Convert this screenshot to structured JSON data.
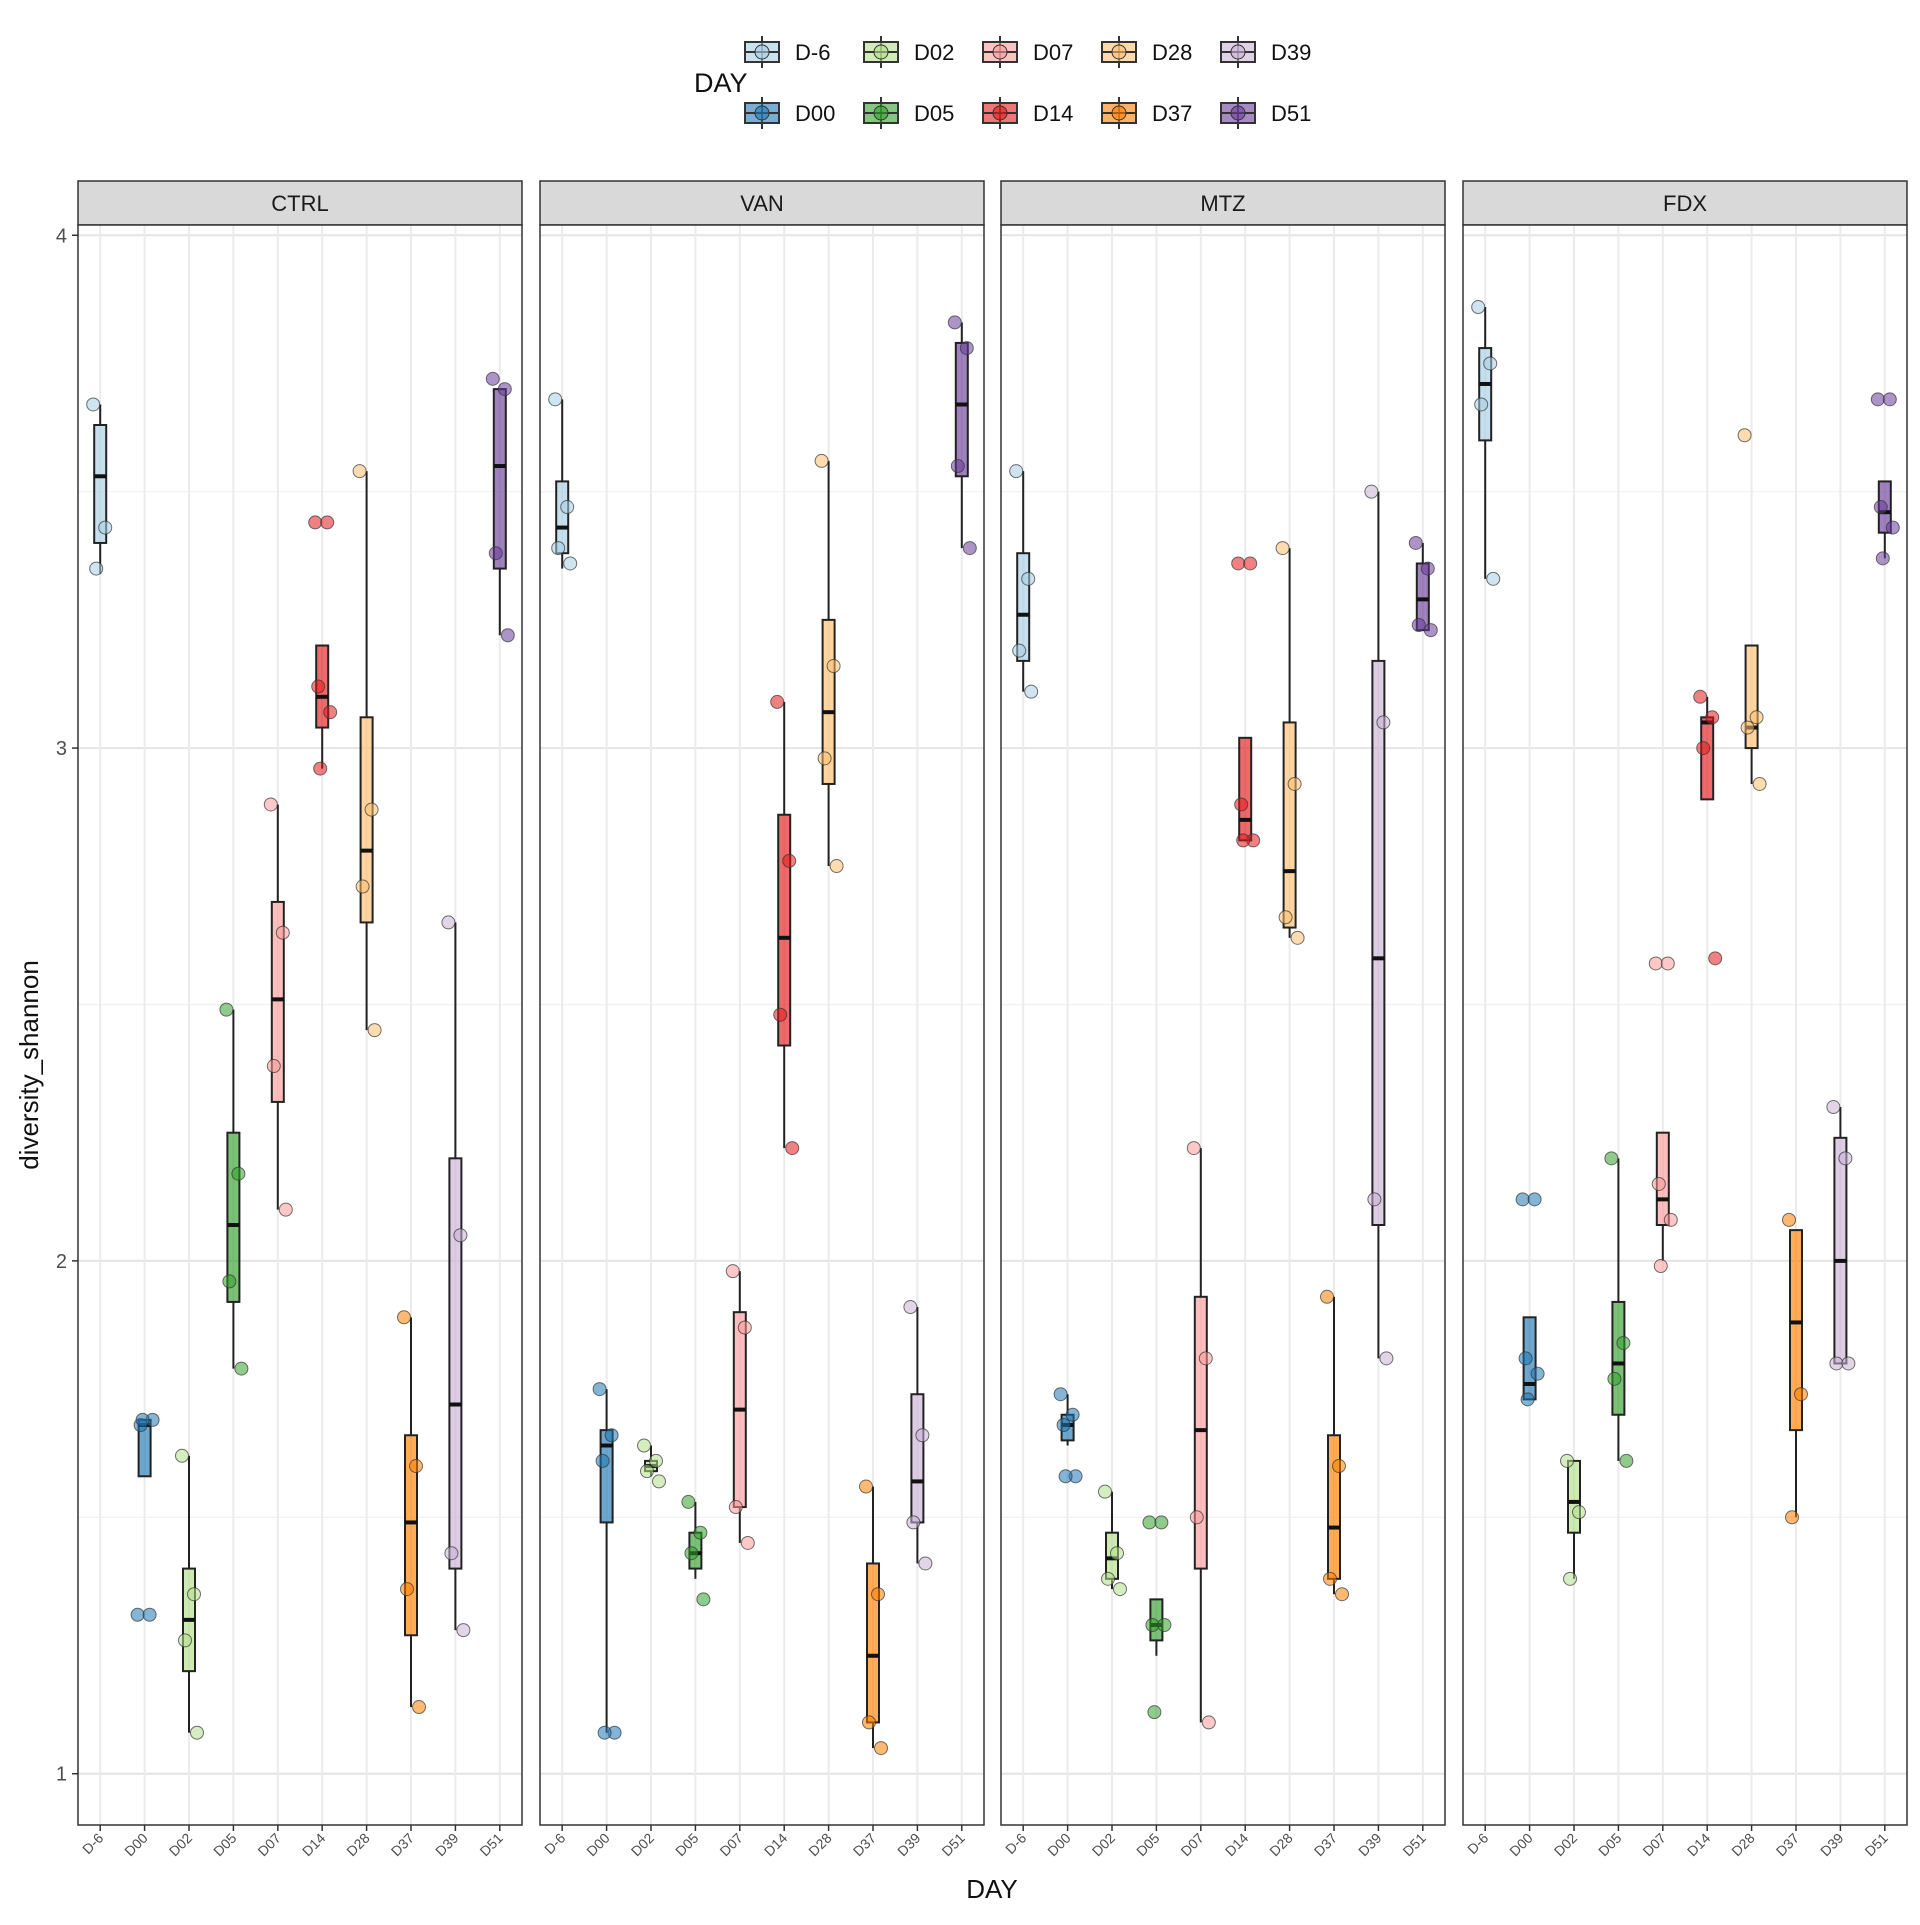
{
  "chart_data": {
    "type": "box",
    "xlabel": "DAY",
    "ylabel": "diversity_shannon",
    "ylim": [
      0.9,
      4.02
    ],
    "yticks": [
      1,
      2,
      3,
      4
    ],
    "grid": true,
    "legend_title": "DAY",
    "legend_position": "top",
    "categories": [
      "D-6",
      "D00",
      "D02",
      "D05",
      "D07",
      "D14",
      "D28",
      "D37",
      "D39",
      "D51"
    ],
    "legend_order": [
      "D-6",
      "D02",
      "D07",
      "D28",
      "D39",
      "D00",
      "D05",
      "D14",
      "D37",
      "D51"
    ],
    "colors": {
      "D-6": "#a6cee3",
      "D00": "#1f78b4",
      "D02": "#b2df8a",
      "D05": "#33a02c",
      "D07": "#fb9a99",
      "D14": "#e31a1c",
      "D28": "#fdbf6f",
      "D37": "#ff7f00",
      "D39": "#cab2d6",
      "D51": "#6a3d9a"
    },
    "panels": [
      {
        "name": "CTRL",
        "boxes": [
          {
            "day": "D-6",
            "min": 3.34,
            "q1": 3.4,
            "median": 3.53,
            "q3": 3.63,
            "max": 3.67,
            "points": [
              3.67,
              3.43,
              3.35
            ]
          },
          {
            "day": "D00",
            "min": 1.58,
            "q1": 1.58,
            "median": 1.68,
            "q3": 1.69,
            "max": 1.69,
            "points": [
              1.31,
              1.31,
              1.68,
              1.69,
              1.69
            ]
          },
          {
            "day": "D02",
            "min": 1.08,
            "q1": 1.2,
            "median": 1.3,
            "q3": 1.4,
            "max": 1.62,
            "points": [
              1.62,
              1.35,
              1.26,
              1.08
            ]
          },
          {
            "day": "D05",
            "min": 1.79,
            "q1": 1.92,
            "median": 2.07,
            "q3": 2.25,
            "max": 2.49,
            "points": [
              2.49,
              2.17,
              1.96,
              1.79
            ]
          },
          {
            "day": "D07",
            "min": 2.1,
            "q1": 2.31,
            "median": 2.51,
            "q3": 2.7,
            "max": 2.89,
            "points": [
              2.89,
              2.64,
              2.38,
              2.1
            ]
          },
          {
            "day": "D14",
            "min": 2.96,
            "q1": 3.04,
            "median": 3.1,
            "q3": 3.2,
            "max": 3.2,
            "points": [
              3.44,
              3.44,
              3.12,
              3.07,
              2.96
            ]
          },
          {
            "day": "D28",
            "min": 2.45,
            "q1": 2.66,
            "median": 2.8,
            "q3": 3.06,
            "max": 3.54,
            "points": [
              3.54,
              2.88,
              2.73,
              2.45
            ]
          },
          {
            "day": "D37",
            "min": 1.13,
            "q1": 1.27,
            "median": 1.49,
            "q3": 1.66,
            "max": 1.89,
            "points": [
              1.89,
              1.6,
              1.36,
              1.13
            ]
          },
          {
            "day": "D39",
            "min": 1.28,
            "q1": 1.4,
            "median": 1.72,
            "q3": 2.2,
            "max": 2.66,
            "points": [
              2.66,
              2.05,
              1.43,
              1.28
            ]
          },
          {
            "day": "D51",
            "min": 3.22,
            "q1": 3.35,
            "median": 3.55,
            "q3": 3.7,
            "max": 3.7,
            "points": [
              3.72,
              3.7,
              3.38,
              3.22
            ]
          }
        ]
      },
      {
        "name": "VAN",
        "boxes": [
          {
            "day": "D-6",
            "min": 3.35,
            "q1": 3.38,
            "median": 3.43,
            "q3": 3.52,
            "max": 3.68,
            "points": [
              3.68,
              3.47,
              3.39,
              3.36
            ]
          },
          {
            "day": "D00",
            "min": 1.08,
            "q1": 1.49,
            "median": 1.64,
            "q3": 1.67,
            "max": 1.75,
            "points": [
              1.75,
              1.66,
              1.61,
              1.08,
              1.08
            ]
          },
          {
            "day": "D02",
            "min": 1.58,
            "q1": 1.59,
            "median": 1.6,
            "q3": 1.61,
            "max": 1.64,
            "points": [
              1.64,
              1.61,
              1.59,
              1.57
            ]
          },
          {
            "day": "D05",
            "min": 1.38,
            "q1": 1.4,
            "median": 1.43,
            "q3": 1.47,
            "max": 1.53,
            "points": [
              1.53,
              1.47,
              1.43,
              1.34
            ]
          },
          {
            "day": "D07",
            "min": 1.45,
            "q1": 1.52,
            "median": 1.71,
            "q3": 1.9,
            "max": 1.98,
            "points": [
              1.98,
              1.87,
              1.52,
              1.45
            ]
          },
          {
            "day": "D14",
            "min": 2.22,
            "q1": 2.42,
            "median": 2.63,
            "q3": 2.87,
            "max": 3.09,
            "points": [
              3.09,
              2.78,
              2.48,
              2.22
            ]
          },
          {
            "day": "D28",
            "min": 2.77,
            "q1": 2.93,
            "median": 3.07,
            "q3": 3.25,
            "max": 3.56,
            "points": [
              3.56,
              3.16,
              2.98,
              2.77
            ]
          },
          {
            "day": "D37",
            "min": 1.05,
            "q1": 1.1,
            "median": 1.23,
            "q3": 1.41,
            "max": 1.56,
            "points": [
              1.56,
              1.35,
              1.1,
              1.05
            ]
          },
          {
            "day": "D39",
            "min": 1.41,
            "q1": 1.49,
            "median": 1.57,
            "q3": 1.74,
            "max": 1.91,
            "points": [
              1.91,
              1.66,
              1.49,
              1.41
            ]
          },
          {
            "day": "D51",
            "min": 3.39,
            "q1": 3.53,
            "median": 3.67,
            "q3": 3.79,
            "max": 3.83,
            "points": [
              3.83,
              3.78,
              3.55,
              3.39
            ]
          }
        ]
      },
      {
        "name": "MTZ",
        "boxes": [
          {
            "day": "D-6",
            "min": 3.11,
            "q1": 3.17,
            "median": 3.26,
            "q3": 3.38,
            "max": 3.54,
            "points": [
              3.54,
              3.33,
              3.19,
              3.11
            ]
          },
          {
            "day": "D00",
            "min": 1.64,
            "q1": 1.65,
            "median": 1.68,
            "q3": 1.7,
            "max": 1.74,
            "points": [
              1.74,
              1.7,
              1.68,
              1.58,
              1.58
            ]
          },
          {
            "day": "D02",
            "min": 1.36,
            "q1": 1.38,
            "median": 1.42,
            "q3": 1.47,
            "max": 1.55,
            "points": [
              1.55,
              1.43,
              1.38,
              1.36
            ]
          },
          {
            "day": "D05",
            "min": 1.23,
            "q1": 1.26,
            "median": 1.29,
            "q3": 1.34,
            "max": 1.34,
            "points": [
              1.49,
              1.49,
              1.29,
              1.29,
              1.12
            ]
          },
          {
            "day": "D07",
            "min": 1.1,
            "q1": 1.4,
            "median": 1.67,
            "q3": 1.93,
            "max": 2.22,
            "points": [
              2.22,
              1.81,
              1.5,
              1.1
            ]
          },
          {
            "day": "D14",
            "min": 2.82,
            "q1": 2.82,
            "median": 2.86,
            "q3": 3.02,
            "max": 3.02,
            "points": [
              3.36,
              3.36,
              2.89,
              2.82,
              2.82
            ]
          },
          {
            "day": "D28",
            "min": 2.63,
            "q1": 2.65,
            "median": 2.76,
            "q3": 3.05,
            "max": 3.39,
            "points": [
              3.39,
              2.93,
              2.67,
              2.63
            ]
          },
          {
            "day": "D37",
            "min": 1.35,
            "q1": 1.38,
            "median": 1.48,
            "q3": 1.66,
            "max": 1.93,
            "points": [
              1.93,
              1.6,
              1.38,
              1.35
            ]
          },
          {
            "day": "D39",
            "min": 1.81,
            "q1": 2.07,
            "median": 2.59,
            "q3": 3.17,
            "max": 3.5,
            "points": [
              3.5,
              3.05,
              2.12,
              1.81
            ]
          },
          {
            "day": "D51",
            "min": 3.23,
            "q1": 3.23,
            "median": 3.29,
            "q3": 3.36,
            "max": 3.4,
            "points": [
              3.4,
              3.35,
              3.24,
              3.23
            ]
          }
        ]
      },
      {
        "name": "FDX",
        "boxes": [
          {
            "day": "D-6",
            "min": 3.33,
            "q1": 3.6,
            "median": 3.71,
            "q3": 3.78,
            "max": 3.86,
            "points": [
              3.86,
              3.75,
              3.67,
              3.33
            ]
          },
          {
            "day": "D00",
            "min": 1.73,
            "q1": 1.73,
            "median": 1.76,
            "q3": 1.89,
            "max": 1.89,
            "points": [
              2.12,
              2.12,
              1.81,
              1.78,
              1.73
            ]
          },
          {
            "day": "D02",
            "min": 1.38,
            "q1": 1.47,
            "median": 1.53,
            "q3": 1.61,
            "max": 1.61,
            "points": [
              1.61,
              1.51,
              1.38
            ]
          },
          {
            "day": "D05",
            "min": 1.61,
            "q1": 1.7,
            "median": 1.8,
            "q3": 1.92,
            "max": 2.2,
            "points": [
              2.2,
              1.84,
              1.77,
              1.61
            ]
          },
          {
            "day": "D07",
            "min": 2.0,
            "q1": 2.07,
            "median": 2.12,
            "q3": 2.25,
            "max": 2.25,
            "points": [
              2.58,
              2.58,
              2.15,
              2.08,
              1.99
            ]
          },
          {
            "day": "D14",
            "min": 2.9,
            "q1": 2.9,
            "median": 3.05,
            "q3": 3.06,
            "max": 3.1,
            "points": [
              3.1,
              3.06,
              3.0,
              2.59
            ]
          },
          {
            "day": "D28",
            "min": 2.93,
            "q1": 3.0,
            "median": 3.04,
            "q3": 3.2,
            "max": 3.2,
            "points": [
              3.61,
              3.06,
              3.04,
              2.93
            ]
          },
          {
            "day": "D37",
            "min": 1.5,
            "q1": 1.67,
            "median": 1.88,
            "q3": 2.06,
            "max": 2.06,
            "points": [
              2.08,
              1.74,
              1.5
            ]
          },
          {
            "day": "D39",
            "min": 1.8,
            "q1": 1.8,
            "median": 2.0,
            "q3": 2.24,
            "max": 2.3,
            "points": [
              2.3,
              2.2,
              1.8,
              1.8
            ]
          },
          {
            "day": "D51",
            "min": 3.37,
            "q1": 3.42,
            "median": 3.46,
            "q3": 3.52,
            "max": 3.52,
            "points": [
              3.68,
              3.68,
              3.47,
              3.43,
              3.37
            ]
          }
        ]
      }
    ]
  }
}
